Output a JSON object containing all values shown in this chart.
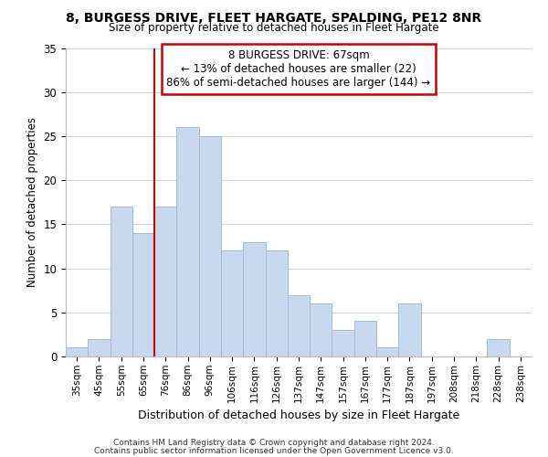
{
  "title": "8, BURGESS DRIVE, FLEET HARGATE, SPALDING, PE12 8NR",
  "subtitle": "Size of property relative to detached houses in Fleet Hargate",
  "xlabel": "Distribution of detached houses by size in Fleet Hargate",
  "ylabel": "Number of detached properties",
  "bar_color": "#c8d9ef",
  "bar_edge_color": "#a0bcd8",
  "bin_labels": [
    "35sqm",
    "45sqm",
    "55sqm",
    "65sqm",
    "76sqm",
    "86sqm",
    "96sqm",
    "106sqm",
    "116sqm",
    "126sqm",
    "137sqm",
    "147sqm",
    "157sqm",
    "167sqm",
    "177sqm",
    "187sqm",
    "197sqm",
    "208sqm",
    "218sqm",
    "228sqm",
    "238sqm"
  ],
  "bar_heights": [
    1,
    2,
    17,
    14,
    17,
    26,
    25,
    12,
    13,
    12,
    7,
    6,
    3,
    4,
    1,
    6,
    0,
    0,
    0,
    2,
    0
  ],
  "vline_x_idx": 3,
  "vline_color": "#cc0000",
  "ylim": [
    0,
    35
  ],
  "annotation_title": "8 BURGESS DRIVE: 67sqm",
  "annotation_line1": "← 13% of detached houses are smaller (22)",
  "annotation_line2": "86% of semi-detached houses are larger (144) →",
  "annotation_box_color": "#ffffff",
  "annotation_box_edge": "#cc0000",
  "footer1": "Contains HM Land Registry data © Crown copyright and database right 2024.",
  "footer2": "Contains public sector information licensed under the Open Government Licence v3.0.",
  "background_color": "#ffffff",
  "grid_color": "#d0d8e8",
  "yticks": [
    0,
    5,
    10,
    15,
    20,
    25,
    30,
    35
  ]
}
